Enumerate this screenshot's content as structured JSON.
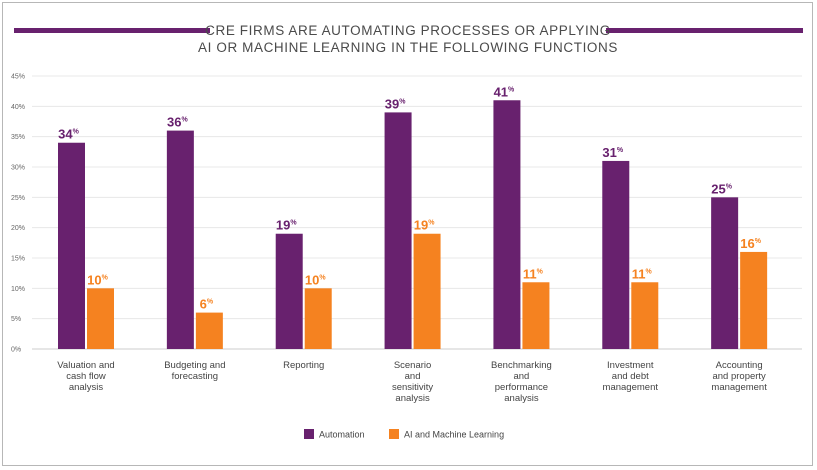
{
  "chart_data": {
    "type": "bar",
    "title_lines": [
      "CRE FIRMS ARE AUTOMATING PROCESSES OR APPLYING",
      "AI OR MACHINE LEARNING IN THE FOLLOWING FUNCTIONS"
    ],
    "categories": [
      [
        "Valuation and",
        "cash flow",
        "analysis"
      ],
      [
        "Budgeting and",
        "forecasting"
      ],
      [
        "Reporting"
      ],
      [
        "Scenario",
        "and",
        "sensitivity",
        "analysis"
      ],
      [
        "Benchmarking",
        "and",
        "performance",
        "analysis"
      ],
      [
        "Investment",
        "and debt",
        "management"
      ],
      [
        "Accounting",
        "and property",
        "management"
      ]
    ],
    "series": [
      {
        "name": "Automation",
        "color": "#68216e",
        "values": [
          34,
          36,
          19,
          39,
          41,
          31,
          25
        ]
      },
      {
        "name": "AI and Machine Learning",
        "color": "#f58220",
        "values": [
          10,
          6,
          10,
          19,
          11,
          11,
          16
        ]
      }
    ],
    "value_suffix": "%",
    "ylim": [
      0,
      45
    ],
    "yticks": [
      "0%",
      "5%",
      "10%",
      "15%",
      "20%",
      "25%",
      "30%",
      "35%",
      "40%",
      "45%"
    ],
    "grid": true,
    "legend_position": "bottom-center",
    "accent_color": "#68216e"
  }
}
